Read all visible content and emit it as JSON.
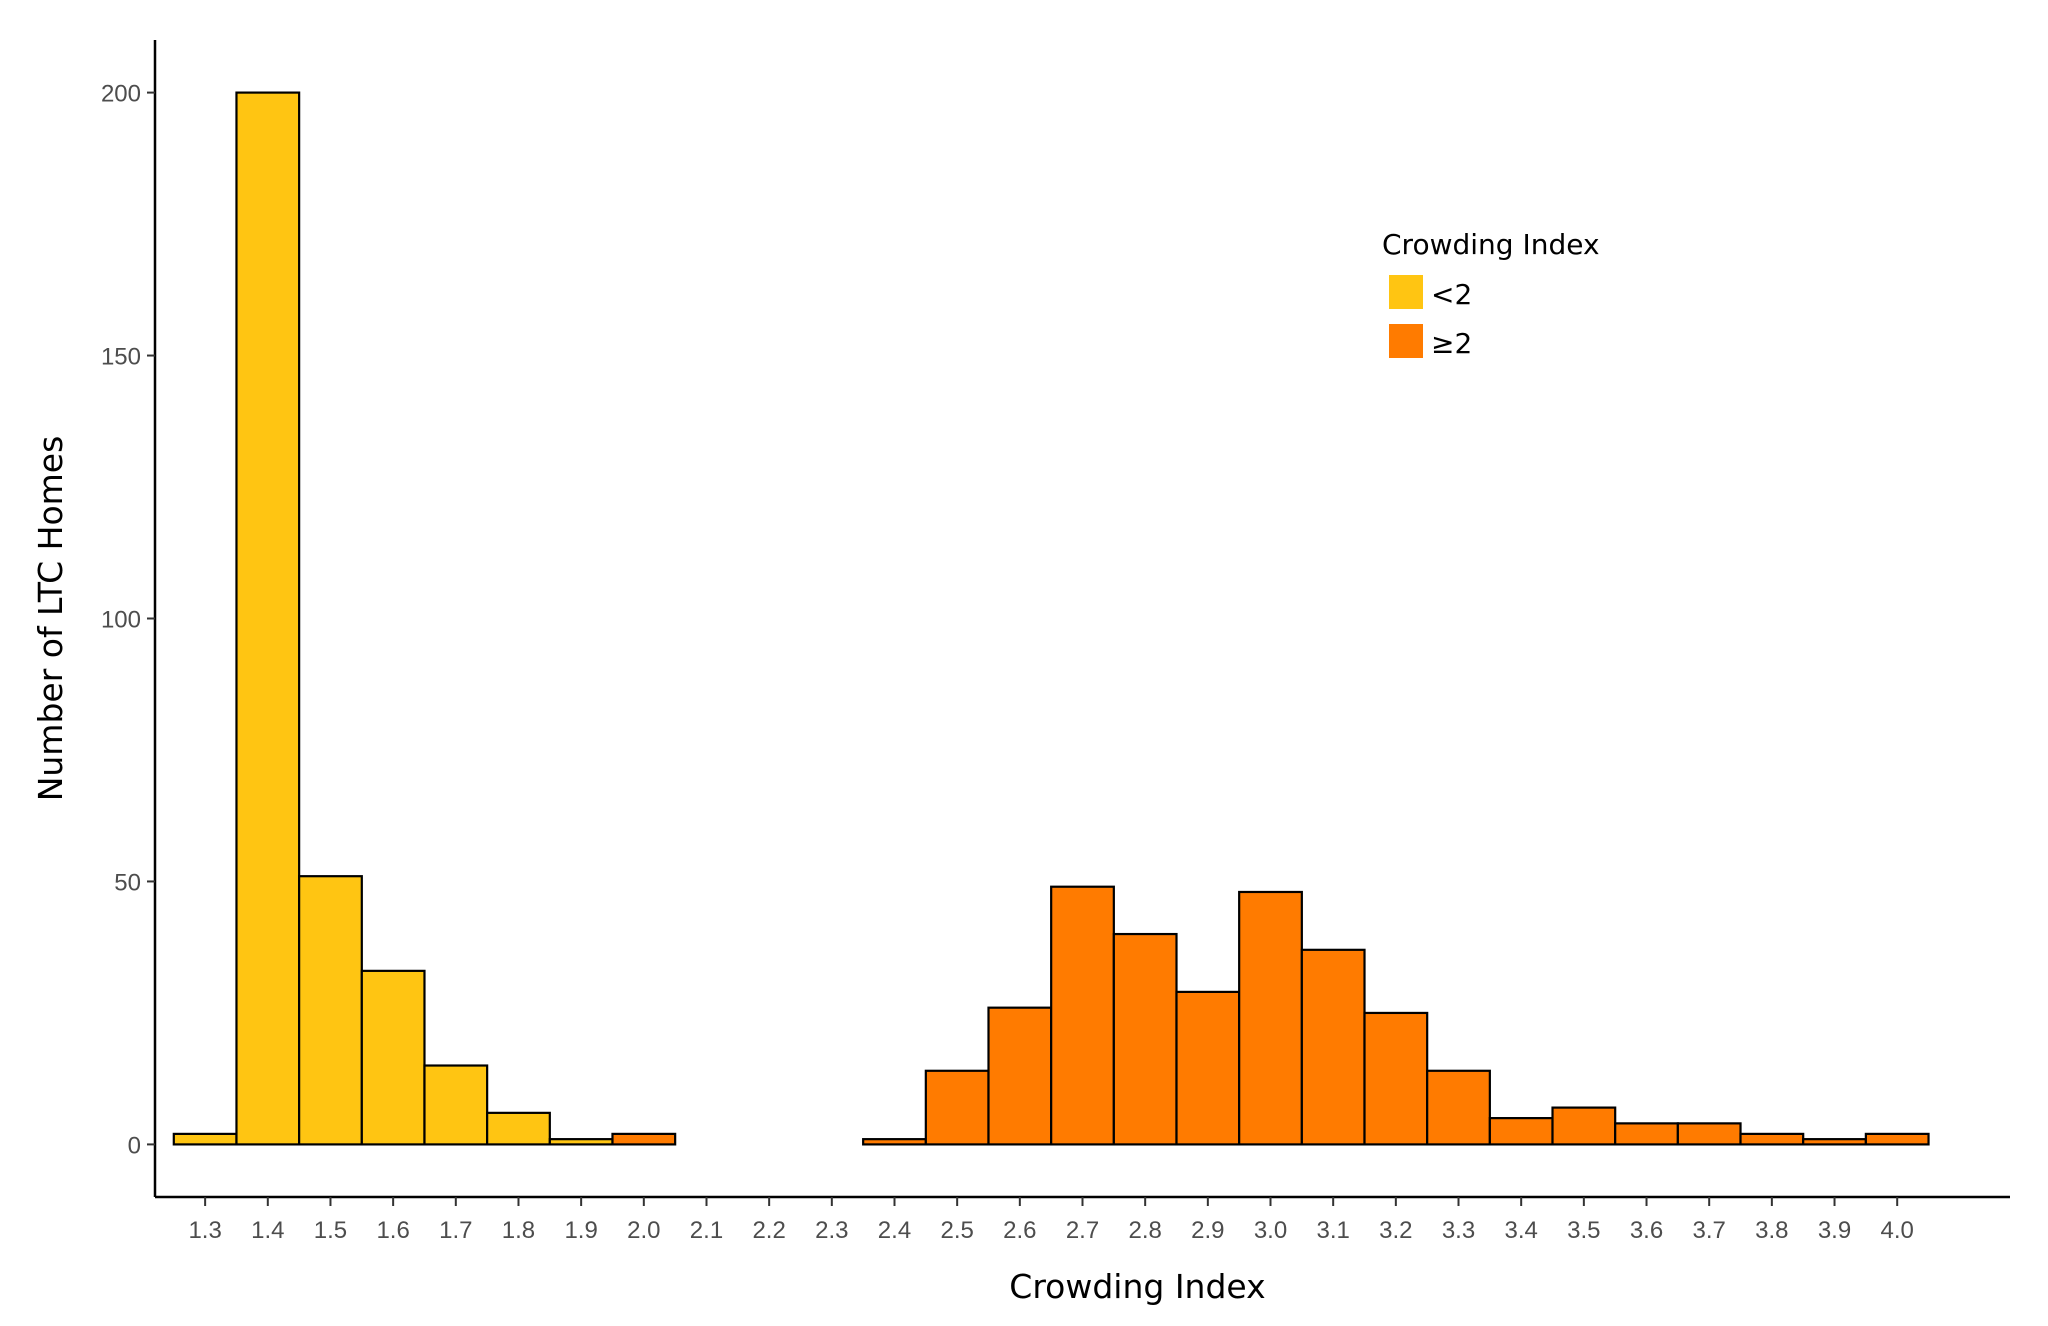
{
  "chart_data": {
    "type": "bar",
    "title": "",
    "xlabel": "Crowding Index",
    "ylabel": "Number of LTC Homes",
    "x_tick_labels": [
      "1.3",
      "1.4",
      "1.5",
      "1.6",
      "1.7",
      "1.8",
      "1.9",
      "2.0",
      "2.1",
      "2.2",
      "2.3",
      "2.4",
      "2.5",
      "2.6",
      "2.7",
      "2.8",
      "2.9",
      "3.0",
      "3.1",
      "3.2",
      "3.3",
      "3.4",
      "3.5",
      "3.6",
      "3.7",
      "3.8",
      "3.9",
      "4.0"
    ],
    "y_ticks": [
      0,
      50,
      100,
      150,
      200
    ],
    "y_tick_labels": [
      "0",
      "50",
      "100",
      "150",
      "200"
    ],
    "ylim": [
      -10,
      210
    ],
    "xlim": [
      1.22,
      4.18
    ],
    "bin_width": 0.1,
    "grid": false,
    "legend": {
      "title": "Crowding Index",
      "position": "top-right",
      "items": [
        {
          "label": "<2",
          "color": "#FFC512"
        },
        {
          "label": "≥2",
          "color": "#FF7B00"
        }
      ]
    },
    "series": [
      {
        "name": "<2",
        "color": "#FFC512",
        "x": [
          1.3,
          1.4,
          1.5,
          1.6,
          1.7,
          1.8,
          1.9
        ],
        "values": [
          2,
          200,
          51,
          33,
          15,
          6,
          1
        ]
      },
      {
        "name": "≥2",
        "color": "#FF7B00",
        "x": [
          2.0,
          2.1,
          2.2,
          2.3,
          2.4,
          2.5,
          2.6,
          2.7,
          2.8,
          2.9,
          3.0,
          3.1,
          3.2,
          3.3,
          3.4,
          3.5,
          3.6,
          3.7,
          3.8,
          3.9,
          4.0
        ],
        "values": [
          2,
          0,
          0,
          0,
          1,
          14,
          26,
          49,
          40,
          29,
          48,
          37,
          25,
          14,
          5,
          7,
          4,
          4,
          2,
          1,
          2
        ]
      }
    ]
  }
}
